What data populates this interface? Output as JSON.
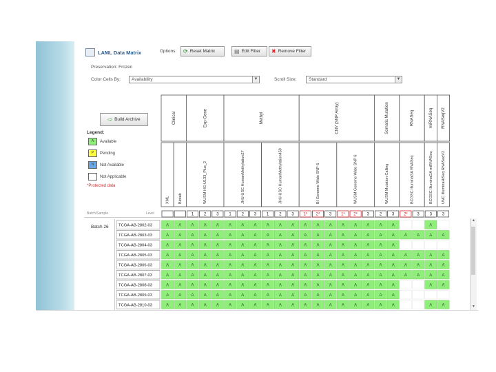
{
  "header": {
    "title": "LAML Data Matrix",
    "options_label": "Options:",
    "buttons": [
      {
        "label": "Reset Matrix",
        "icon": "reset-icon"
      },
      {
        "label": "Edit Filter",
        "icon": "filter-icon"
      },
      {
        "label": "Remove Filter",
        "icon": "remove-icon"
      }
    ]
  },
  "preservation": "Preservation: Frozen",
  "color_by": {
    "label": "Color Cells By:",
    "value": "Availability"
  },
  "scroll_size": {
    "label": "Scroll Size:",
    "value": "Standard"
  },
  "build_archive": "Build Archive",
  "legend": {
    "title": "Legend:",
    "items": [
      {
        "code": "A",
        "label": "Available",
        "color": "#90ee7a"
      },
      {
        "code": "P",
        "label": "Pending",
        "color": "#ffff44"
      },
      {
        "code": "N",
        "label": "Not Available",
        "color": "#6aa6e6"
      },
      {
        "code": "",
        "label": "Not Applicable",
        "color": "#ffffff"
      }
    ],
    "protected": "*Protected data"
  },
  "matrix": {
    "batch_header": "Batch/Sample",
    "level_header": "Level",
    "groups": [
      "Clinical",
      "Exp-Gene",
      "Methyl",
      "CNV (SNP Array)",
      "Somatic Mutation",
      "RNASeq",
      "miRNASeq",
      "RNASeqV2"
    ],
    "platforms": [
      "XML",
      "Biotab",
      "WUSM HG-U133_Plus_2",
      "JHU-USC HumanMethylation27",
      "JHU-USC HumanMethylation450",
      "BI Genome Wide SNP 6",
      "WUSM Genome Wide SNP 6",
      "WUSM Mutation Calling",
      "BCGSC IlluminaGA RNASeq",
      "BCGSC IlluminaGA miRNASeq",
      "UNC IlluminaHiSeq RNASeqV2"
    ],
    "levels": [
      "",
      "",
      "1",
      "2",
      "3",
      "1",
      "2",
      "3",
      "1",
      "2",
      "3",
      "1*",
      "2*",
      "3",
      "1*",
      "2*",
      "3",
      "2",
      "3",
      "2*",
      "3",
      "3",
      "3"
    ],
    "batch": "Batch 26",
    "rows": [
      {
        "sample": "TCGA-AB-2802-03",
        "cells": [
          "A",
          "A",
          "A",
          "A",
          "A",
          "A",
          "A",
          "A",
          "A",
          "A",
          "A",
          "A",
          "A",
          "A",
          "A",
          "A",
          "A",
          "A",
          "A",
          "",
          "",
          "A",
          ""
        ]
      },
      {
        "sample": "TCGA-AB-2803-03",
        "cells": [
          "A",
          "A",
          "A",
          "A",
          "A",
          "A",
          "A",
          "A",
          "A",
          "A",
          "A",
          "A",
          "A",
          "A",
          "A",
          "A",
          "A",
          "A",
          "A",
          "A",
          "A",
          "A",
          "A"
        ]
      },
      {
        "sample": "TCGA-AB-2804-03",
        "cells": [
          "A",
          "A",
          "A",
          "A",
          "A",
          "A",
          "A",
          "A",
          "A",
          "A",
          "A",
          "A",
          "A",
          "A",
          "A",
          "A",
          "A",
          "A",
          "A",
          "",
          "",
          "",
          ""
        ]
      },
      {
        "sample": "TCGA-AB-2805-03",
        "cells": [
          "A",
          "A",
          "A",
          "A",
          "A",
          "A",
          "A",
          "A",
          "A",
          "A",
          "A",
          "A",
          "A",
          "A",
          "A",
          "A",
          "A",
          "A",
          "A",
          "A",
          "A",
          "A",
          "A"
        ]
      },
      {
        "sample": "TCGA-AB-2806-03",
        "cells": [
          "A",
          "A",
          "A",
          "A",
          "A",
          "A",
          "A",
          "A",
          "A",
          "A",
          "A",
          "A",
          "A",
          "A",
          "A",
          "A",
          "A",
          "A",
          "A",
          "A",
          "A",
          "A",
          "A"
        ]
      },
      {
        "sample": "TCGA-AB-2807-03",
        "cells": [
          "A",
          "A",
          "A",
          "A",
          "A",
          "A",
          "A",
          "A",
          "A",
          "A",
          "A",
          "A",
          "A",
          "A",
          "A",
          "A",
          "A",
          "A",
          "A",
          "A",
          "A",
          "A",
          "A"
        ]
      },
      {
        "sample": "TCGA-AB-2808-03",
        "cells": [
          "A",
          "A",
          "A",
          "A",
          "A",
          "A",
          "A",
          "A",
          "A",
          "A",
          "A",
          "A",
          "A",
          "A",
          "A",
          "A",
          "A",
          "A",
          "A",
          "",
          "",
          "A",
          "A"
        ]
      },
      {
        "sample": "TCGA-AB-2809-03",
        "cells": [
          "A",
          "A",
          "A",
          "A",
          "A",
          "A",
          "A",
          "A",
          "A",
          "A",
          "A",
          "A",
          "A",
          "A",
          "A",
          "A",
          "A",
          "A",
          "A",
          "",
          "",
          "",
          ""
        ]
      },
      {
        "sample": "TCGA-AB-2810-03",
        "cells": [
          "A",
          "A",
          "A",
          "A",
          "A",
          "A",
          "A",
          "A",
          "A",
          "A",
          "A",
          "A",
          "A",
          "A",
          "A",
          "A",
          "A",
          "A",
          "A",
          "",
          "",
          "A",
          "A"
        ]
      }
    ]
  },
  "colors": {
    "available": "#90ee7a",
    "protected": "#cc2222",
    "accent": "#2b5a8c"
  }
}
